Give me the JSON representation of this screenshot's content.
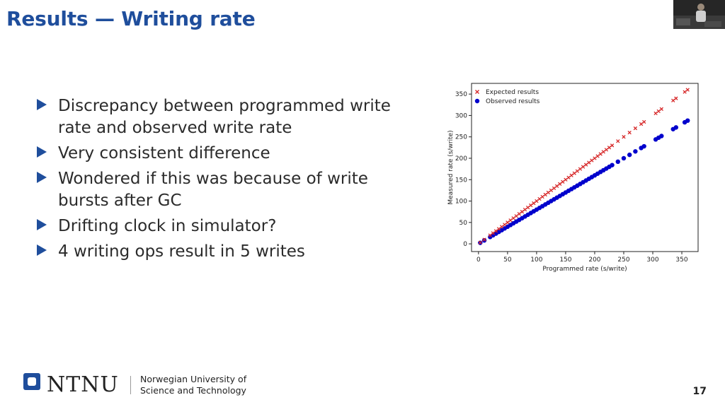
{
  "slide": {
    "title": "Results — Writing rate",
    "bullets": [
      "Discrepancy between programmed write rate and observed write rate",
      "Very consistent difference",
      "Wondered if this was because of write bursts after GC",
      "Drifting clock in simulator?",
      "4 writing ops result in 5 writes"
    ],
    "page_number": "17"
  },
  "footer": {
    "logo_text": "NTNU",
    "university_line1": "Norwegian University of",
    "university_line2": "Science and Technology"
  },
  "colors": {
    "title": "#1f4e9c",
    "bullet_arrow": "#1f4e9c",
    "expected": "#d62728",
    "observed": "#0000cc"
  },
  "chart_data": {
    "type": "scatter",
    "title": "",
    "xlabel": "Programmed rate (s/write)",
    "ylabel": "Measured rate (s/write)",
    "xlim": [
      -12,
      378
    ],
    "ylim": [
      -18,
      375
    ],
    "xticks": [
      0,
      50,
      100,
      150,
      200,
      250,
      300,
      350
    ],
    "yticks": [
      0,
      50,
      100,
      150,
      200,
      250,
      300,
      350
    ],
    "grid": false,
    "legend_position": "top-left",
    "series": [
      {
        "name": "Expected results",
        "marker": "x",
        "color": "#d62728",
        "x": [
          3,
          10,
          20,
          25,
          30,
          35,
          40,
          45,
          50,
          55,
          60,
          65,
          70,
          75,
          80,
          85,
          90,
          95,
          100,
          105,
          110,
          115,
          120,
          125,
          130,
          135,
          140,
          145,
          150,
          155,
          160,
          165,
          170,
          175,
          180,
          185,
          190,
          195,
          200,
          205,
          210,
          215,
          220,
          225,
          230,
          240,
          250,
          260,
          270,
          280,
          285,
          305,
          310,
          315,
          335,
          340,
          355,
          360
        ],
        "y": [
          3,
          10,
          20,
          25,
          30,
          35,
          40,
          45,
          50,
          55,
          60,
          65,
          70,
          75,
          80,
          85,
          90,
          95,
          100,
          105,
          110,
          115,
          120,
          125,
          130,
          135,
          140,
          145,
          150,
          155,
          160,
          165,
          170,
          175,
          180,
          185,
          190,
          195,
          200,
          205,
          210,
          215,
          220,
          225,
          230,
          240,
          250,
          260,
          270,
          280,
          285,
          305,
          310,
          315,
          335,
          340,
          355,
          360
        ]
      },
      {
        "name": "Observed results",
        "marker": "o",
        "color": "#0000cc",
        "x": [
          3,
          10,
          20,
          25,
          30,
          35,
          40,
          45,
          50,
          55,
          60,
          65,
          70,
          75,
          80,
          85,
          90,
          95,
          100,
          105,
          110,
          115,
          120,
          125,
          130,
          135,
          140,
          145,
          150,
          155,
          160,
          165,
          170,
          175,
          180,
          185,
          190,
          195,
          200,
          205,
          210,
          215,
          220,
          225,
          230,
          240,
          250,
          260,
          270,
          280,
          285,
          305,
          310,
          315,
          335,
          340,
          355,
          360
        ],
        "y": [
          2.4,
          8,
          16,
          20,
          24,
          28,
          32,
          36,
          40,
          44,
          48,
          52,
          56,
          60,
          64,
          68,
          72,
          76,
          80,
          84,
          88,
          92,
          96,
          100,
          104,
          108,
          112,
          116,
          120,
          124,
          128,
          132,
          136,
          140,
          144,
          148,
          152,
          156,
          160,
          164,
          168,
          172,
          176,
          180,
          184,
          192,
          200,
          208,
          216,
          224,
          228,
          244,
          248,
          252,
          268,
          272,
          284,
          288
        ]
      }
    ]
  }
}
